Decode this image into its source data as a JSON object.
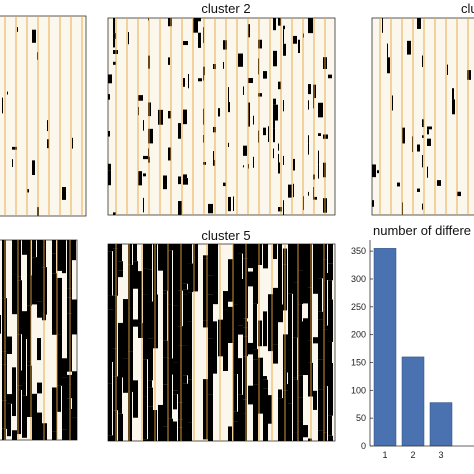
{
  "colors": {
    "fill_black": "#000000",
    "background": "#fbf7ec",
    "vline": "#e8a33c",
    "bar": "#4a72b0",
    "axis": "#333333"
  },
  "chart_data": [
    {
      "type": "heatmap",
      "title": "",
      "density": 0.04,
      "seed": 11
    },
    {
      "type": "heatmap",
      "title": "cluster 2",
      "density": 0.12,
      "seed": 23
    },
    {
      "type": "heatmap",
      "title": "clu",
      "density": 0.06,
      "seed": 37
    },
    {
      "type": "heatmap",
      "title": "",
      "density": 0.6,
      "seed": 41
    },
    {
      "type": "heatmap",
      "title": "cluster 5",
      "density": 0.78,
      "seed": 53
    },
    {
      "type": "bar",
      "title": "number of differe",
      "categories": [
        "1",
        "2",
        "3"
      ],
      "values": [
        355,
        160,
        78
      ],
      "ylim": [
        0,
        370
      ],
      "yticks": [
        0,
        50,
        100,
        150,
        200,
        250,
        300,
        350
      ],
      "xlabel": "",
      "ylabel": ""
    }
  ]
}
